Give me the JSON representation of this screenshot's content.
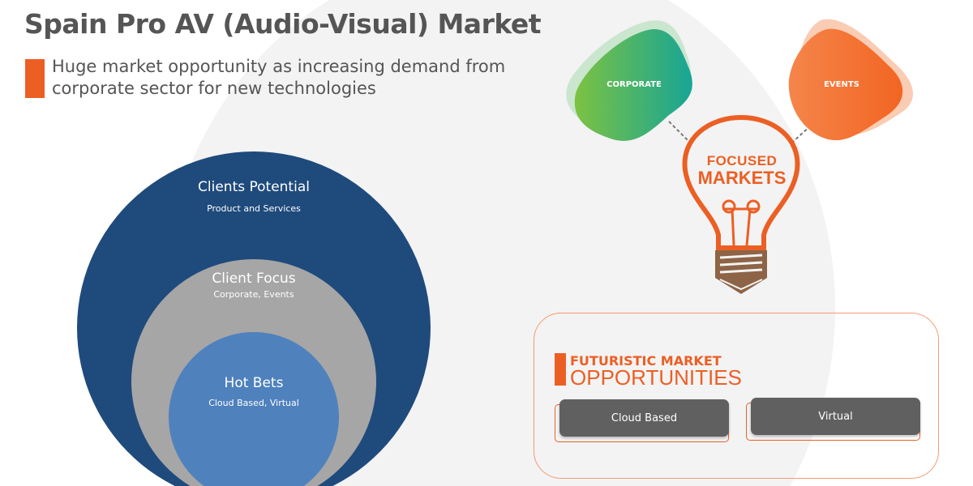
{
  "header": {
    "title": "Spain Pro AV (Audio-Visual) Market",
    "subtitle": "Huge market opportunity as increasing demand from corporate sector for new technologies"
  },
  "circles": {
    "outer": {
      "title": "Clients Potential",
      "subtitle": "Product and Services",
      "color": "#1f4a7c"
    },
    "middle": {
      "title": "Client Focus",
      "subtitle": "Corporate, Events",
      "color": "#a6a6a6"
    },
    "inner": {
      "title": "Hot Bets",
      "subtitle": "Cloud Based, Virtual",
      "color": "#4f81bd"
    }
  },
  "focused_markets": {
    "line1": "FOCUSED",
    "line2": "MARKETS",
    "markets": [
      {
        "label": "CORPORATE",
        "color_start": "#7dc242",
        "color_end": "#17a595"
      },
      {
        "label": "EVENTS",
        "color_start": "#f5854a",
        "color_end": "#f26522"
      }
    ]
  },
  "opportunities": {
    "line1": "FUTURISTIC MARKET",
    "line2": "OPPORTUNITIES",
    "items": [
      "Cloud Based",
      "Virtual"
    ]
  },
  "colors": {
    "accent": "#ec5f24",
    "text": "#555555",
    "card": "#606060",
    "bulb_base": "#8d6446"
  }
}
